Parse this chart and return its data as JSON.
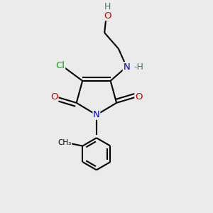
{
  "bg_color": "#ebebeb",
  "atom_colors": {
    "C": "#000000",
    "N": "#0000cc",
    "O": "#cc0000",
    "Cl": "#00aa00",
    "H": "#507070"
  },
  "bond_color": "#000000",
  "bond_width": 1.5,
  "figsize": [
    3.0,
    3.0
  ],
  "dpi": 100
}
